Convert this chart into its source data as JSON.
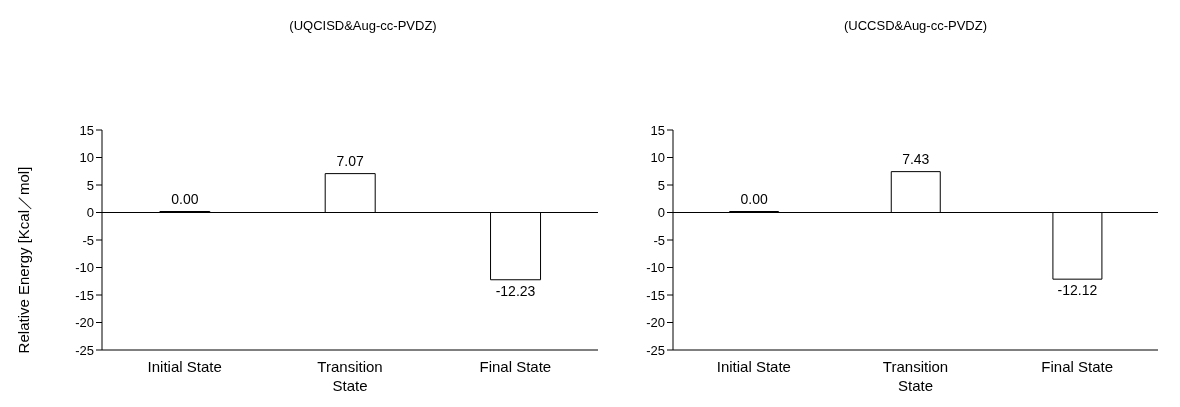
{
  "chart_data": [
    {
      "type": "bar",
      "title": "(UQCISD&Aug-cc-PVDZ)",
      "ylabel": "Relative  Energy  [Kcal／mol]",
      "categories": [
        "Initial State",
        "Transition State",
        "Final State"
      ],
      "values": [
        0.0,
        7.07,
        -12.23
      ],
      "value_labels": [
        "0.00",
        "7.07",
        "-12.23"
      ],
      "color": "#ffffff",
      "ylim": [
        -25,
        15
      ],
      "yticks": [
        -25,
        -20,
        -15,
        -10,
        -5,
        0,
        5,
        10,
        15
      ],
      "ref_lines": [
        {
          "axis": "y",
          "value": 0,
          "color": "#000000"
        }
      ],
      "grid": false,
      "legend": false
    },
    {
      "type": "bar",
      "title": "(UCCSD&Aug-cc-PVDZ)",
      "categories": [
        "Initial State",
        "Transition State",
        "Final State"
      ],
      "values": [
        0.0,
        7.43,
        -12.12
      ],
      "value_labels": [
        "0.00",
        "7.43",
        "-12.12"
      ],
      "color": "#ffffff",
      "ylim": [
        -25,
        15
      ],
      "yticks": [
        -25,
        -20,
        -15,
        -10,
        -5,
        0,
        5,
        10,
        15
      ],
      "ref_lines": [
        {
          "axis": "y",
          "value": 0,
          "color": "#000000"
        }
      ],
      "grid": false,
      "legend": false
    }
  ]
}
